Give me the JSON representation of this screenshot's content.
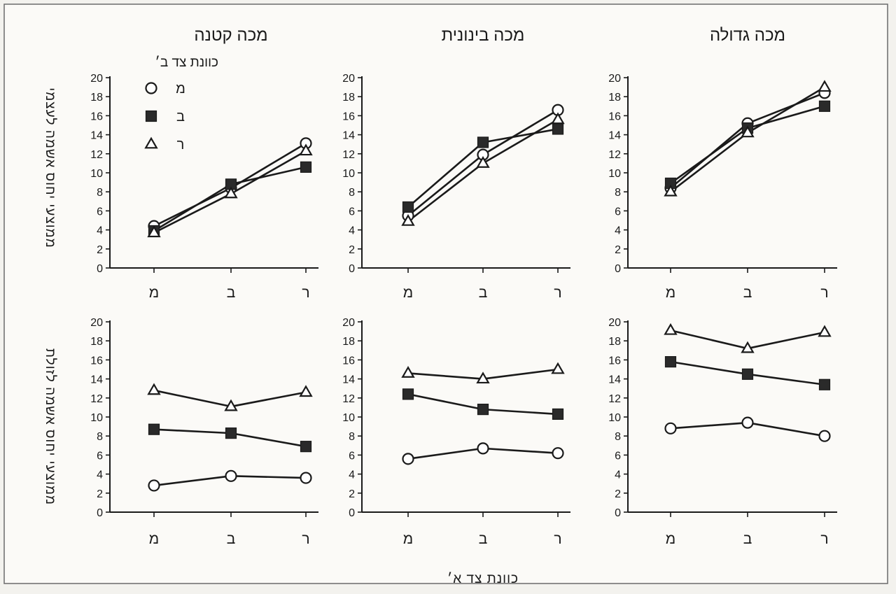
{
  "figure": {
    "xlabel": "כוונת צד א׳",
    "row_ylabels": [
      "ממוצעי יחוס אשמה לעצמי",
      "ממוצעי יחוס אשמה לזולת"
    ],
    "legend": {
      "title": "כוונת צד ב׳",
      "entries": [
        {
          "label": "מ",
          "marker": "circle"
        },
        {
          "label": "ב",
          "marker": "square"
        },
        {
          "label": "ר",
          "marker": "triangle"
        }
      ]
    }
  },
  "chart_data": [
    {
      "type": "line",
      "row": 0,
      "col": 0,
      "title": "מכה קטנה",
      "ylabel": "ממוצעי יחוס אשמה לעצמי",
      "xlabel": "",
      "categories": [
        "מ",
        "ב",
        "ר"
      ],
      "ylim": [
        0,
        20
      ],
      "yticks": [
        0,
        2,
        4,
        6,
        8,
        10,
        12,
        14,
        16,
        18,
        20
      ],
      "series": [
        {
          "name": "מ",
          "marker": "circle",
          "values": [
            4.4,
            8.4,
            13.1
          ]
        },
        {
          "name": "ב",
          "marker": "square",
          "values": [
            3.9,
            8.8,
            10.6
          ]
        },
        {
          "name": "ר",
          "marker": "triangle",
          "values": [
            3.7,
            7.8,
            12.3
          ]
        }
      ]
    },
    {
      "type": "line",
      "row": 0,
      "col": 1,
      "title": "מכה בינונית",
      "ylabel": "",
      "xlabel": "",
      "categories": [
        "מ",
        "ב",
        "ר"
      ],
      "ylim": [
        0,
        20
      ],
      "yticks": [
        0,
        2,
        4,
        6,
        8,
        10,
        12,
        14,
        16,
        18,
        20
      ],
      "series": [
        {
          "name": "מ",
          "marker": "circle",
          "values": [
            5.5,
            11.9,
            16.6
          ]
        },
        {
          "name": "ב",
          "marker": "square",
          "values": [
            6.4,
            13.2,
            14.6
          ]
        },
        {
          "name": "ר",
          "marker": "triangle",
          "values": [
            4.9,
            11.0,
            15.6
          ]
        }
      ]
    },
    {
      "type": "line",
      "row": 0,
      "col": 2,
      "title": "מכה גדולה",
      "ylabel": "",
      "xlabel": "",
      "categories": [
        "מ",
        "ב",
        "ר"
      ],
      "ylim": [
        0,
        20
      ],
      "yticks": [
        0,
        2,
        4,
        6,
        8,
        10,
        12,
        14,
        16,
        18,
        20
      ],
      "series": [
        {
          "name": "מ",
          "marker": "circle",
          "values": [
            8.4,
            15.2,
            18.4
          ]
        },
        {
          "name": "ב",
          "marker": "square",
          "values": [
            8.9,
            14.7,
            17.0
          ]
        },
        {
          "name": "ר",
          "marker": "triangle",
          "values": [
            8.0,
            14.2,
            19.0
          ]
        }
      ]
    },
    {
      "type": "line",
      "row": 1,
      "col": 0,
      "title": "",
      "ylabel": "ממוצעי יחוס אשמה לזולת",
      "xlabel": "",
      "categories": [
        "מ",
        "ב",
        "ר"
      ],
      "ylim": [
        0,
        20
      ],
      "yticks": [
        0,
        2,
        4,
        6,
        8,
        10,
        12,
        14,
        16,
        18,
        20
      ],
      "series": [
        {
          "name": "מ",
          "marker": "circle",
          "values": [
            2.8,
            3.8,
            3.6
          ]
        },
        {
          "name": "ב",
          "marker": "square",
          "values": [
            8.7,
            8.3,
            6.9
          ]
        },
        {
          "name": "ר",
          "marker": "triangle",
          "values": [
            12.8,
            11.1,
            12.6
          ]
        }
      ]
    },
    {
      "type": "line",
      "row": 1,
      "col": 1,
      "title": "",
      "ylabel": "",
      "xlabel": "",
      "categories": [
        "מ",
        "ב",
        "ר"
      ],
      "ylim": [
        0,
        20
      ],
      "yticks": [
        0,
        2,
        4,
        6,
        8,
        10,
        12,
        14,
        16,
        18,
        20
      ],
      "series": [
        {
          "name": "מ",
          "marker": "circle",
          "values": [
            5.6,
            6.7,
            6.2
          ]
        },
        {
          "name": "ב",
          "marker": "square",
          "values": [
            12.4,
            10.8,
            10.3
          ]
        },
        {
          "name": "ר",
          "marker": "triangle",
          "values": [
            14.6,
            14.0,
            15.0
          ]
        }
      ]
    },
    {
      "type": "line",
      "row": 1,
      "col": 2,
      "title": "",
      "ylabel": "",
      "xlabel": "כוונת צד א׳",
      "categories": [
        "מ",
        "ב",
        "ר"
      ],
      "ylim": [
        0,
        20
      ],
      "yticks": [
        0,
        2,
        4,
        6,
        8,
        10,
        12,
        14,
        16,
        18,
        20
      ],
      "series": [
        {
          "name": "מ",
          "marker": "circle",
          "values": [
            8.8,
            9.4,
            8.0
          ]
        },
        {
          "name": "ב",
          "marker": "square",
          "values": [
            15.8,
            14.5,
            13.4
          ]
        },
        {
          "name": "ר",
          "marker": "triangle",
          "values": [
            19.1,
            17.2,
            18.9
          ]
        }
      ]
    }
  ]
}
